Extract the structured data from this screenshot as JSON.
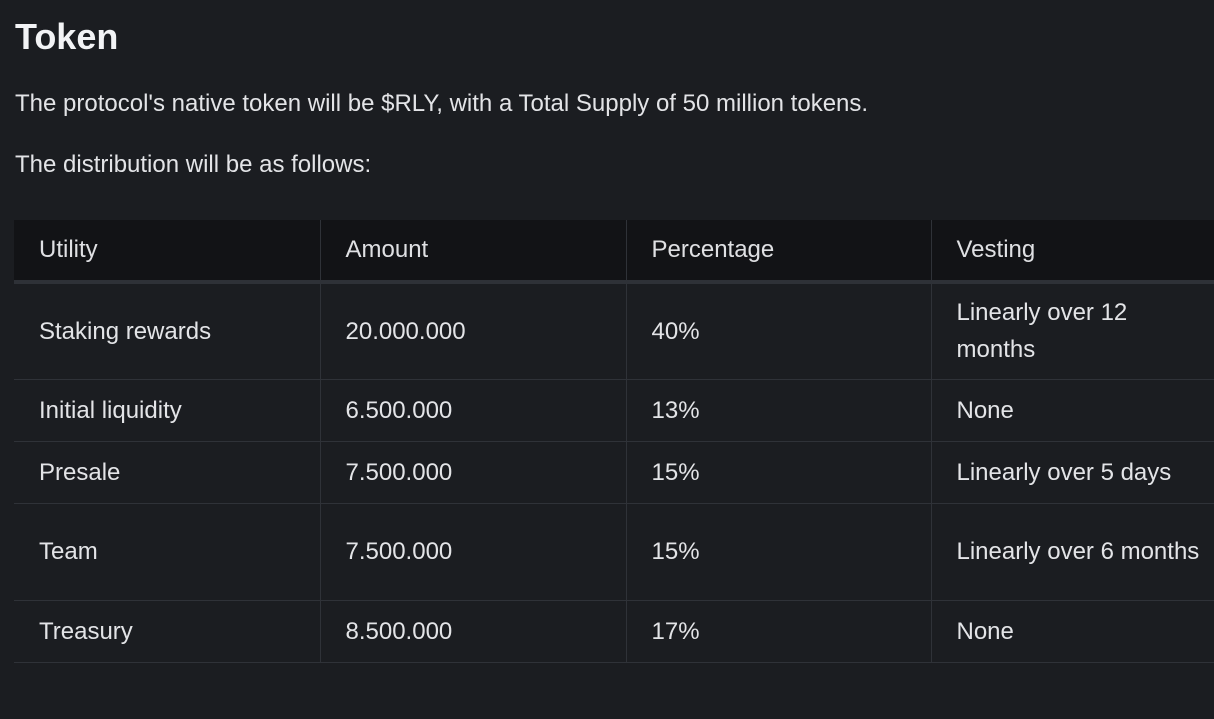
{
  "heading": "Token",
  "intro": "The protocol's native token will be $RLY, with a Total Supply of 50 million tokens.",
  "distribution_intro": "The distribution will be as follows:",
  "table": {
    "headers": [
      "Utility",
      "Amount",
      "Percentage",
      "Vesting"
    ],
    "rows": [
      [
        "Staking rewards",
        "20.000.000",
        "40%",
        "Linearly over 12 months"
      ],
      [
        "Initial liquidity",
        "6.500.000",
        "13%",
        "None"
      ],
      [
        "Presale",
        "7.500.000",
        "15%",
        "Linearly over 5 days"
      ],
      [
        "Team",
        "7.500.000",
        "15%",
        "Linearly over 6 months"
      ],
      [
        "Treasury",
        "8.500.000",
        "17%",
        "None"
      ]
    ]
  }
}
